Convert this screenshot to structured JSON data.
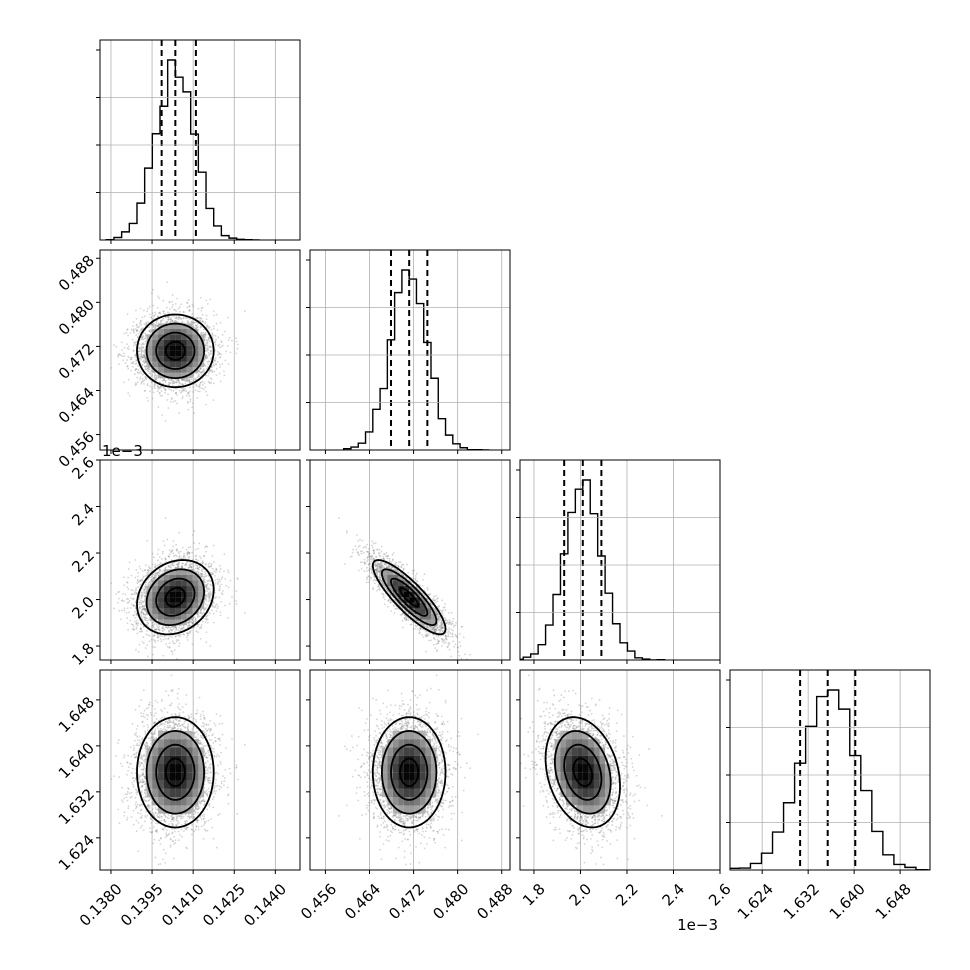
{
  "chart_data": {
    "type": "corner",
    "grid": true,
    "parameters": [
      {
        "key": "p1",
        "range": [
          0.1376,
          0.1449
        ],
        "ticks": [
          0.138,
          0.1395,
          0.141,
          0.1425,
          0.144
        ],
        "tick_labels": [
          "0.1380",
          "0.1395",
          "0.1410",
          "0.1425",
          "0.1440"
        ],
        "exponent_label": "",
        "median": 0.14035,
        "sigma": 0.0007,
        "quantiles": [
          0.13985,
          0.14035,
          0.1411
        ]
      },
      {
        "key": "p2",
        "range": [
          0.4532,
          0.4895
        ],
        "ticks": [
          0.456,
          0.464,
          0.472,
          0.48,
          0.488
        ],
        "tick_labels": [
          "0.456",
          "0.464",
          "0.472",
          "0.480",
          "0.488"
        ],
        "exponent_label": "",
        "median": 0.4712,
        "sigma": 0.0033,
        "quantiles": [
          0.4679,
          0.4712,
          0.4745
        ]
      },
      {
        "key": "p3",
        "range": [
          1.74,
          2.6
        ],
        "ticks": [
          1.8,
          2.0,
          2.2,
          2.4,
          2.6
        ],
        "tick_labels": [
          "1.8",
          "2.0",
          "2.2",
          "2.4",
          "2.6"
        ],
        "exponent_label": "1e−3",
        "median": 2.01,
        "sigma": 0.08,
        "quantiles": [
          1.93,
          2.01,
          2.09
        ]
      },
      {
        "key": "p4",
        "range": [
          1.6184,
          1.6532
        ],
        "ticks": [
          1.624,
          1.632,
          1.64,
          1.648
        ],
        "tick_labels": [
          "1.624",
          "1.632",
          "1.640",
          "1.648"
        ],
        "exponent_label": "",
        "median": 1.6354,
        "sigma": 0.0048,
        "quantiles": [
          1.6306,
          1.6354,
          1.6402
        ]
      }
    ],
    "correlations": [
      [
        1.0,
        0.0,
        0.2,
        0.0
      ],
      [
        0.0,
        1.0,
        -0.85,
        0.0
      ],
      [
        0.2,
        -0.85,
        1.0,
        -0.25
      ],
      [
        0.0,
        0.0,
        -0.25,
        1.0
      ]
    ],
    "contour_levels_sigma": [
      0.5,
      1.0,
      1.5,
      2.0
    ],
    "histogram_bins": 20
  }
}
